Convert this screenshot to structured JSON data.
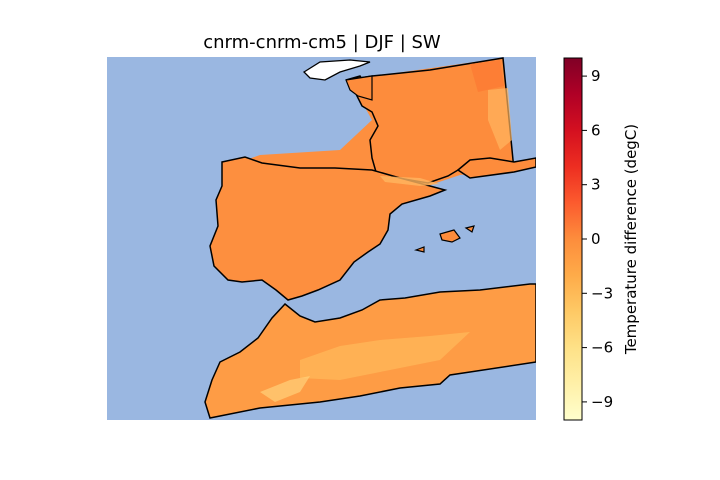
{
  "title": "cnrm-cnrm-cm5 | DJF | SW",
  "colorbar": {
    "label": "Temperature difference (degC)",
    "min": -10,
    "max": 10,
    "ticks": [
      "9",
      "6",
      "3",
      "0",
      "−3",
      "−6",
      "−9"
    ],
    "colors": [
      "#ffffcc",
      "#fff0a8",
      "#fee187",
      "#fec965",
      "#feab49",
      "#fd8d3c",
      "#fc5b2e",
      "#ed2e21",
      "#d41020",
      "#b00026",
      "#800026"
    ]
  },
  "map": {
    "ocean_color": "#9ab7e1",
    "land_color": "#ff8c3c",
    "regions": [
      "Iberian Peninsula",
      "France",
      "Balearic Islands",
      "Morocco",
      "Algeria"
    ]
  }
}
